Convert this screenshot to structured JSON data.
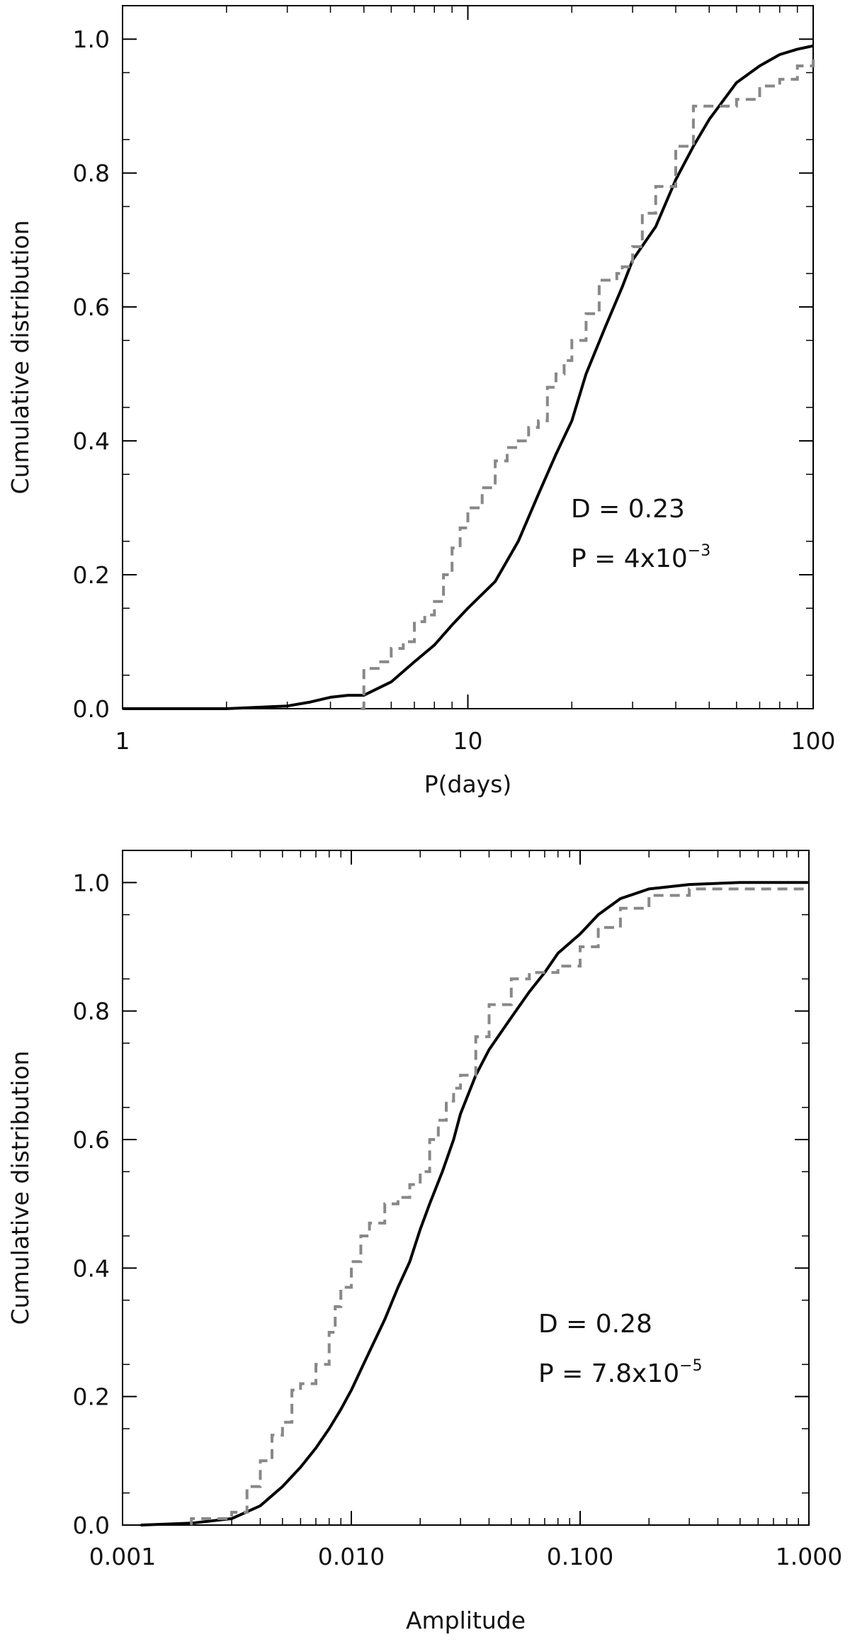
{
  "chart_data": [
    {
      "type": "line",
      "xscale": "log",
      "xlim": [
        1,
        100
      ],
      "ylim": [
        0,
        1.05
      ],
      "xticks": [
        1,
        10,
        100
      ],
      "xtick_labels": [
        "1",
        "10",
        "100"
      ],
      "yticks": [
        0,
        0.2,
        0.4,
        0.6,
        0.8,
        1.0
      ],
      "ytick_labels": [
        "0.0",
        "0.2",
        "0.4",
        "0.6",
        "0.8",
        "1.0"
      ],
      "xlabel": "P(days)",
      "ylabel": "Cumulative distribution",
      "annotation": {
        "d_line": "D = 0.23",
        "p_line_base": "P = 4x10",
        "p_line_exp": "−3"
      },
      "series": [
        {
          "style": "solid",
          "color": "#000000",
          "x": [
            1.0,
            2.0,
            3.0,
            3.5,
            4.0,
            4.5,
            5.0,
            6.0,
            7.0,
            8.0,
            9.0,
            10.0,
            12.0,
            14.0,
            16.0,
            18.0,
            20.0,
            22.0,
            25.0,
            28.0,
            30.0,
            35.0,
            40.0,
            45.0,
            50.0,
            60.0,
            70.0,
            80.0,
            90.0,
            100.0
          ],
          "y": [
            0.0,
            0.0,
            0.004,
            0.01,
            0.017,
            0.02,
            0.02,
            0.04,
            0.07,
            0.095,
            0.125,
            0.15,
            0.19,
            0.25,
            0.32,
            0.38,
            0.43,
            0.5,
            0.57,
            0.63,
            0.67,
            0.72,
            0.79,
            0.84,
            0.88,
            0.935,
            0.96,
            0.977,
            0.985,
            0.99
          ]
        },
        {
          "style": "dashed-step",
          "color": "#888888",
          "x": [
            4.9,
            5.0,
            5.5,
            6.0,
            6.5,
            7.0,
            7.5,
            8.0,
            8.5,
            9.0,
            9.5,
            10.0,
            11.0,
            12.0,
            13.0,
            14.0,
            15.0,
            16.0,
            17.0,
            18.0,
            19.0,
            20.0,
            22.0,
            24.0,
            27.0,
            28.0,
            30.0,
            32.0,
            35.0,
            40.0,
            45.0,
            60.0,
            70.0,
            80.0,
            90.0,
            100.0
          ],
          "y": [
            0.0,
            0.06,
            0.07,
            0.09,
            0.1,
            0.13,
            0.14,
            0.16,
            0.2,
            0.24,
            0.27,
            0.3,
            0.33,
            0.37,
            0.39,
            0.4,
            0.42,
            0.43,
            0.48,
            0.5,
            0.52,
            0.55,
            0.59,
            0.64,
            0.65,
            0.66,
            0.69,
            0.74,
            0.78,
            0.84,
            0.9,
            0.91,
            0.93,
            0.94,
            0.96,
            0.97
          ]
        }
      ]
    },
    {
      "type": "line",
      "xscale": "log",
      "xlim": [
        0.001,
        1.0
      ],
      "ylim": [
        0,
        1.05
      ],
      "xticks": [
        0.001,
        0.01,
        0.1,
        1.0
      ],
      "xtick_labels": [
        "0.001",
        "0.010",
        "0.100",
        "1.000"
      ],
      "yticks": [
        0,
        0.2,
        0.4,
        0.6,
        0.8,
        1.0
      ],
      "ytick_labels": [
        "0.0",
        "0.2",
        "0.4",
        "0.6",
        "0.8",
        "1.0"
      ],
      "xlabel": "Amplitude",
      "ylabel": "Cumulative distribution",
      "annotation": {
        "d_line": "D = 0.28",
        "p_line_base": "P = 7.8x10",
        "p_line_exp": "−5"
      },
      "series": [
        {
          "style": "solid",
          "color": "#000000",
          "x": [
            0.0012,
            0.002,
            0.003,
            0.004,
            0.005,
            0.006,
            0.007,
            0.008,
            0.009,
            0.01,
            0.012,
            0.014,
            0.016,
            0.018,
            0.02,
            0.022,
            0.025,
            0.028,
            0.03,
            0.035,
            0.04,
            0.05,
            0.06,
            0.07,
            0.08,
            0.1,
            0.12,
            0.15,
            0.2,
            0.3,
            0.5,
            1.0
          ],
          "y": [
            0.0,
            0.003,
            0.01,
            0.03,
            0.06,
            0.09,
            0.12,
            0.15,
            0.18,
            0.21,
            0.27,
            0.32,
            0.37,
            0.41,
            0.46,
            0.5,
            0.55,
            0.6,
            0.64,
            0.7,
            0.74,
            0.79,
            0.83,
            0.86,
            0.89,
            0.92,
            0.95,
            0.975,
            0.99,
            0.997,
            1.0,
            1.0
          ]
        },
        {
          "style": "dashed-step",
          "color": "#888888",
          "x": [
            0.002,
            0.003,
            0.0035,
            0.004,
            0.0045,
            0.005,
            0.0055,
            0.006,
            0.007,
            0.008,
            0.0085,
            0.009,
            0.01,
            0.011,
            0.012,
            0.014,
            0.016,
            0.018,
            0.02,
            0.022,
            0.024,
            0.026,
            0.028,
            0.03,
            0.035,
            0.04,
            0.05,
            0.06,
            0.08,
            0.1,
            0.12,
            0.15,
            0.2,
            0.3
          ],
          "y": [
            0.01,
            0.02,
            0.06,
            0.1,
            0.14,
            0.16,
            0.21,
            0.22,
            0.25,
            0.3,
            0.34,
            0.37,
            0.41,
            0.45,
            0.47,
            0.5,
            0.51,
            0.53,
            0.55,
            0.6,
            0.63,
            0.66,
            0.68,
            0.7,
            0.76,
            0.81,
            0.85,
            0.86,
            0.87,
            0.9,
            0.93,
            0.96,
            0.98,
            0.99
          ]
        }
      ]
    }
  ]
}
